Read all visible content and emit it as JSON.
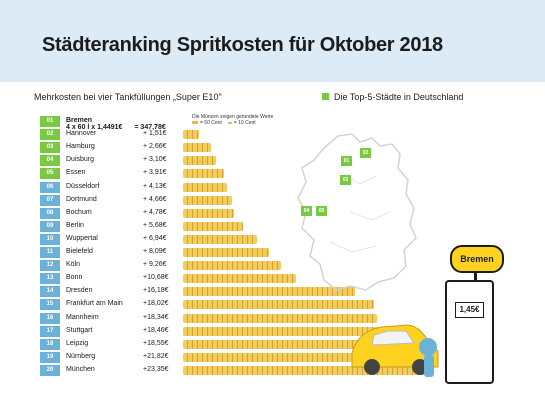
{
  "header": {
    "title": "Städteranking Spritkosten für Oktober 2018"
  },
  "subtitle": "Mehrkosten bei vier Tankfüllungen „Super E10\"",
  "legend": {
    "label": "Die Top-5-Städte in Deutschland",
    "color": "#7ac943"
  },
  "coin_note": {
    "text": "Die Münzen zeigen gerundete Werte",
    "large": "= 50 Cent",
    "small": "= 10 Cent"
  },
  "bremen": {
    "formula": "4 x 60 l x 1,4491€",
    "equals": "= 347,78€"
  },
  "map_labels": [
    "01",
    "02",
    "03",
    "04",
    "05"
  ],
  "sign": {
    "city": "Bremen"
  },
  "pump": {
    "price": "1,45€"
  },
  "colors": {
    "rank_badge": "#6cb2d8",
    "coin": "#e7b43d",
    "header_bg": "#dcebf5",
    "top5": "#7ac943"
  },
  "chart_data": {
    "type": "bar",
    "title": "Städteranking Spritkosten für Oktober 2018",
    "subtitle": "Mehrkosten bei vier Tankfüllungen „Super E10\"",
    "unit": "€",
    "categories": [
      "Bremen",
      "Hannover",
      "Hamburg",
      "Duisburg",
      "Essen",
      "Düsseldorf",
      "Dortmund",
      "Bochum",
      "Berlin",
      "Wuppertal",
      "Bielefeld",
      "Köln",
      "Bonn",
      "Dresden",
      "Frankfurt am Main",
      "Mannheim",
      "Stuttgart",
      "Leipzig",
      "Nürnberg",
      "München"
    ],
    "ranks": [
      "01",
      "02",
      "03",
      "04",
      "05",
      "06",
      "07",
      "08",
      "09",
      "10",
      "11",
      "12",
      "13",
      "14",
      "15",
      "16",
      "17",
      "18",
      "19",
      "20"
    ],
    "labels": [
      "",
      "+ 1,51€",
      "+ 2,66€",
      "+ 3,10€",
      "+ 3,91€",
      "+ 4,13€",
      "+ 4,66€",
      "+ 4,78€",
      "+ 5,68€",
      "+ 6,94€",
      "+ 8,09€",
      "+ 9,26€",
      "+10,68€",
      "+16,18€",
      "+18,02€",
      "+18,34€",
      "+18,46€",
      "+18,55€",
      "+21,82€",
      "+23,35€"
    ],
    "values": [
      0,
      1.51,
      2.66,
      3.1,
      3.91,
      4.13,
      4.66,
      4.78,
      5.68,
      6.94,
      8.09,
      9.26,
      10.68,
      16.18,
      18.02,
      18.34,
      18.46,
      18.55,
      21.82,
      23.35
    ],
    "highlighted_top5": [
      "Bremen",
      "Hannover",
      "Hamburg",
      "Duisburg",
      "Essen"
    ]
  }
}
